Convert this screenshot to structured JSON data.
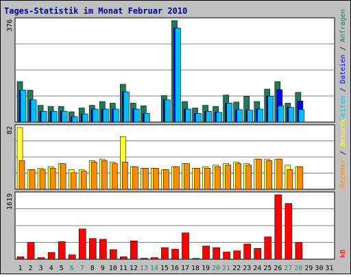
{
  "chart_data": {
    "type": "bar",
    "title": "Tages-Statistik im Monat Februar 2010",
    "categories": [
      "1",
      "2",
      "3",
      "4",
      "5",
      "6",
      "7",
      "8",
      "9",
      "10",
      "11",
      "12",
      "13",
      "14",
      "15",
      "16",
      "17",
      "18",
      "19",
      "20",
      "21",
      "22",
      "23",
      "24",
      "25",
      "26",
      "27",
      "28",
      "29",
      "30",
      "31"
    ],
    "weekend_days": [
      "6",
      "7",
      "13",
      "14",
      "20",
      "21",
      "27",
      "28"
    ],
    "colors": {
      "title": "#0000a0",
      "weekend_label": "#2e8b57",
      "anfragen": "#1e7a5a",
      "dateien": "#0000ff",
      "seiten": "#00bfff",
      "besuche": "#ffff33",
      "rechner": "#ff8c00",
      "kb": "#ff0000",
      "plot_bg": "#ffffff",
      "frame_bg": "#c0c0c0",
      "grid": "#808080"
    },
    "panels": [
      {
        "ymax_label": "376",
        "ymax": 376,
        "series": [
          {
            "name": "Anfragen",
            "values": [
              150,
              118,
              62,
              58,
              58,
              38,
              52,
              62,
              76,
              70,
              140,
              70,
              60,
              0,
              98,
              376,
              76,
              52,
              62,
              58,
              100,
              74,
              96,
              76,
              122,
              150,
              70,
              110,
              0,
              0,
              0
            ]
          },
          {
            "name": "Dateien",
            "values": [
              118,
              82,
              40,
              40,
              40,
              20,
              30,
              48,
              48,
              48,
              112,
              48,
              32,
              0,
              82,
              348,
              48,
              32,
              40,
              36,
              70,
              46,
              44,
              48,
              96,
              120,
              54,
              78,
              0,
              0,
              0
            ]
          },
          {
            "name": "Seiten",
            "values": [
              118,
              82,
              40,
              40,
              40,
              20,
              30,
              48,
              48,
              48,
              112,
              48,
              32,
              0,
              82,
              348,
              48,
              32,
              40,
              36,
              70,
              46,
              44,
              48,
              96,
              60,
              54,
              46,
              0,
              0,
              0
            ]
          }
        ],
        "axis_label": [
          "Seiten",
          "Dateien",
          "Anfragen"
        ]
      },
      {
        "ymax_label": "82",
        "ymax": 82,
        "series": [
          {
            "name": "Besuche",
            "values": [
              82,
              26,
              28,
              30,
              34,
              26,
              26,
              38,
              40,
              36,
              70,
              30,
              28,
              28,
              26,
              30,
              34,
              28,
              30,
              32,
              34,
              36,
              34,
              40,
              40,
              40,
              32,
              30,
              0,
              0,
              0
            ]
          },
          {
            "name": "Rechner",
            "values": [
              38,
              26,
              26,
              28,
              34,
              22,
              24,
              36,
              38,
              34,
              36,
              30,
              28,
              28,
              26,
              30,
              34,
              28,
              28,
              30,
              32,
              34,
              32,
              40,
              38,
              40,
              26,
              30,
              0,
              0,
              0
            ]
          }
        ],
        "axis_label": [
          "Rechner",
          "Besuche"
        ]
      },
      {
        "ymax_label": "1619",
        "ymax": 1619,
        "series": [
          {
            "name": "kB",
            "values": [
              60,
              420,
              40,
              170,
              440,
              110,
              760,
              520,
              500,
              240,
              60,
              460,
              25,
              40,
              290,
              250,
              660,
              20,
              330,
              290,
              180,
              210,
              380,
              270,
              560,
              1619,
              1400,
              420,
              0,
              0,
              0
            ]
          }
        ],
        "axis_label": [
          "kB"
        ]
      }
    ]
  }
}
